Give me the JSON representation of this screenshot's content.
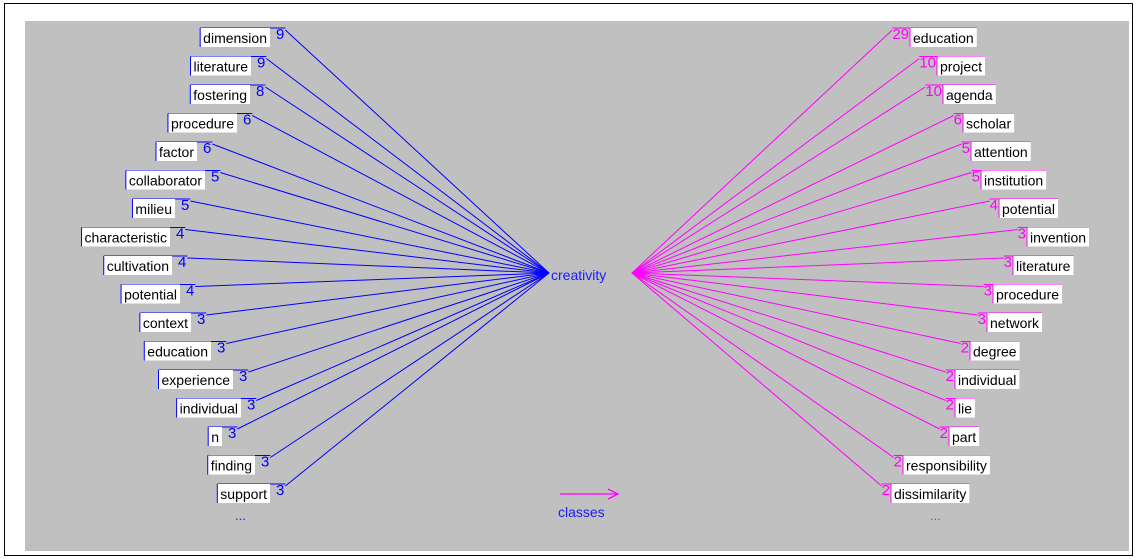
{
  "diagram": {
    "center_term": "creativity",
    "left_color": "#0000ff",
    "right_color": "#ff00ff",
    "left_terms": [
      {
        "term": "dimension",
        "count": "9"
      },
      {
        "term": "literature",
        "count": "9"
      },
      {
        "term": "fostering",
        "count": "8"
      },
      {
        "term": "procedure",
        "count": "6"
      },
      {
        "term": "factor",
        "count": "6"
      },
      {
        "term": "collaborator",
        "count": "5"
      },
      {
        "term": "milieu",
        "count": "5"
      },
      {
        "term": "characteristic",
        "count": "4"
      },
      {
        "term": "cultivation",
        "count": "4"
      },
      {
        "term": "potential",
        "count": "4"
      },
      {
        "term": "context",
        "count": "3"
      },
      {
        "term": "education",
        "count": "3"
      },
      {
        "term": "experience",
        "count": "3"
      },
      {
        "term": "individual",
        "count": "3"
      },
      {
        "term": "n",
        "count": "3"
      },
      {
        "term": "finding",
        "count": "3"
      },
      {
        "term": "support",
        "count": "3"
      }
    ],
    "right_terms": [
      {
        "term": "education",
        "count": "29"
      },
      {
        "term": "project",
        "count": "10"
      },
      {
        "term": "agenda",
        "count": "10"
      },
      {
        "term": "scholar",
        "count": "6"
      },
      {
        "term": "attention",
        "count": "5"
      },
      {
        "term": "institution",
        "count": "5"
      },
      {
        "term": "potential",
        "count": "4"
      },
      {
        "term": "invention",
        "count": "3"
      },
      {
        "term": "literature",
        "count": "3"
      },
      {
        "term": "procedure",
        "count": "3"
      },
      {
        "term": "network",
        "count": "3"
      },
      {
        "term": "degree",
        "count": "2"
      },
      {
        "term": "individual",
        "count": "2"
      },
      {
        "term": "lie",
        "count": "2"
      },
      {
        "term": "part",
        "count": "2"
      },
      {
        "term": "responsibility",
        "count": "2"
      },
      {
        "term": "dissimilarity",
        "count": "2"
      }
    ],
    "left_ellipsis": "...",
    "right_ellipsis": "...",
    "legend_label": "classes"
  }
}
